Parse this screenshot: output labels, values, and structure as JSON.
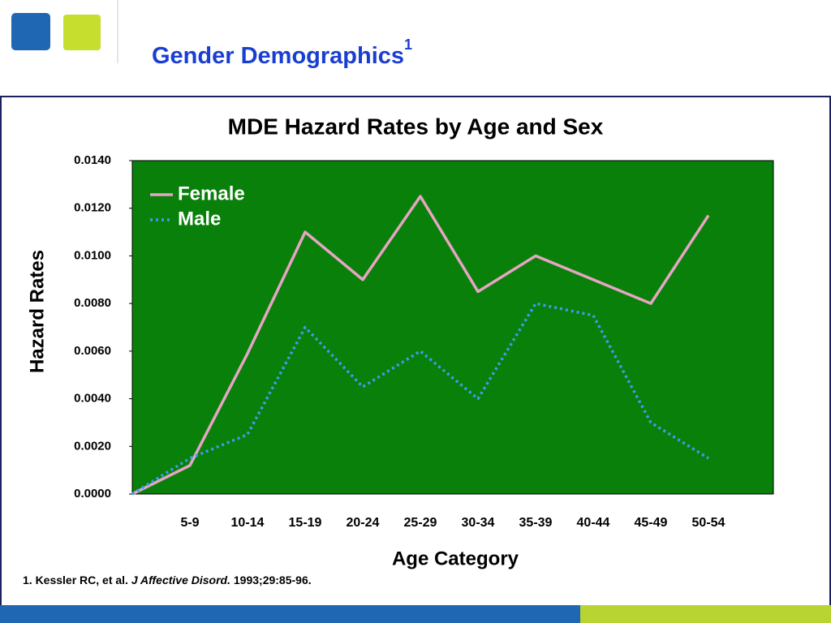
{
  "page": {
    "title": "Gender Demographics",
    "title_superscript": "1",
    "footnote": {
      "authors": "1. Kessler RC, et al.",
      "journal": "J Affective Disord.",
      "citation": "1993;29:85-96."
    }
  },
  "chart_data": {
    "type": "line",
    "title": "MDE Hazard Rates by Age and Sex",
    "ylabel": "Hazard Rates",
    "xlabel": "Age Category",
    "categories": [
      null,
      "5-9",
      "10-14",
      "15-19",
      "20-24",
      "25-29",
      "30-34",
      "35-39",
      "40-44",
      "45-49",
      "50-54"
    ],
    "series": [
      {
        "name": "Female",
        "color": "#e8a4c4",
        "dash": "solid",
        "values": [
          0,
          0.0012,
          0.0059,
          0.011,
          0.009,
          0.0125,
          0.0085,
          0.01,
          0.009,
          0.008,
          0.0117
        ]
      },
      {
        "name": "Male",
        "color": "#3d9cf0",
        "dash": "dotted",
        "values": [
          0,
          0.0015,
          0.0025,
          0.007,
          0.0045,
          0.006,
          0.004,
          0.008,
          0.0075,
          0.003,
          0.0015
        ]
      }
    ],
    "ylim": [
      0,
      0.014
    ],
    "yticks": [
      {
        "value": 0,
        "label": "0.0000"
      },
      {
        "value": 0.002,
        "label": "0.0020"
      },
      {
        "value": 0.004,
        "label": "0.0040"
      },
      {
        "value": 0.006,
        "label": "0.0060"
      },
      {
        "value": 0.008,
        "label": "0.0080"
      },
      {
        "value": 0.01,
        "label": "0.0100"
      },
      {
        "value": 0.012,
        "label": "0.0120"
      },
      {
        "value": 0.014,
        "label": "0.0140"
      }
    ],
    "plot_background": "#08800a",
    "legend": "upper left"
  }
}
